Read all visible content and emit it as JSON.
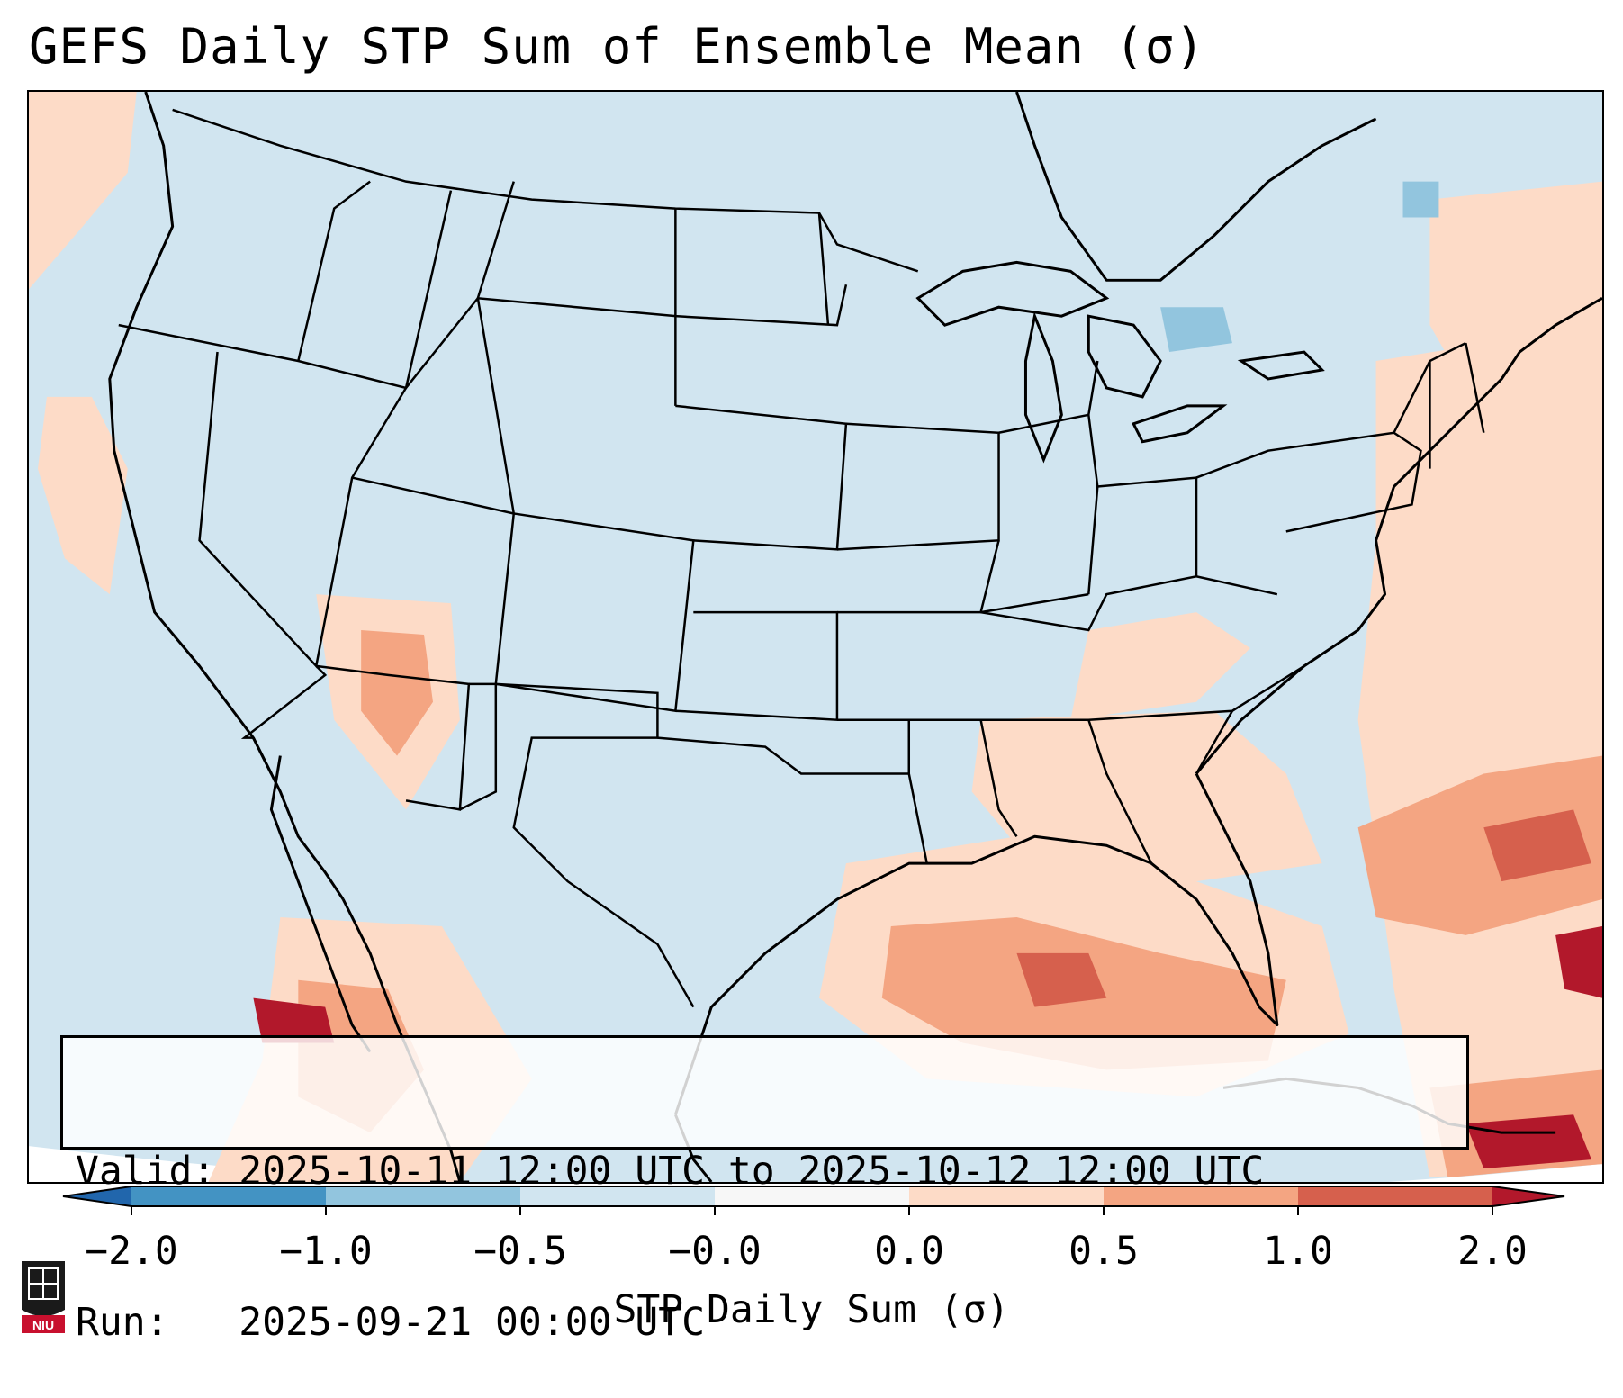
{
  "title": "GEFS Daily STP Sum of Ensemble Mean (σ)",
  "info": {
    "valid_line": "Valid: 2025-10-11 12:00 UTC to 2025-10-12 12:00 UTC",
    "run_line": "Run:   2025-09-21 00:00 UTC"
  },
  "colorbar": {
    "label": "STP Daily Sum (σ)",
    "ticks": [
      "−2.0",
      "−1.0",
      "−0.5",
      "−0.0",
      "0.0",
      "0.5",
      "1.0",
      "2.0"
    ],
    "colors": {
      "extend_low": "#2166ac",
      "bin_neg2_neg1": "#4393c3",
      "bin_neg1_neg05": "#92c5de",
      "bin_neg05_neg0": "#d1e5f0",
      "bin_neg0_0": "#f7f7f7",
      "bin_0_05": "#fddbc7",
      "bin_05_1": "#f4a582",
      "bin_1_2": "#d6604d",
      "extend_high": "#b2182b"
    }
  },
  "map": {
    "ocean_color": "#d1e5f0",
    "land_color": "#d1e5f0",
    "boundary_color": "#000000"
  },
  "logo": {
    "text": "NIU",
    "color": "#c8102e"
  }
}
